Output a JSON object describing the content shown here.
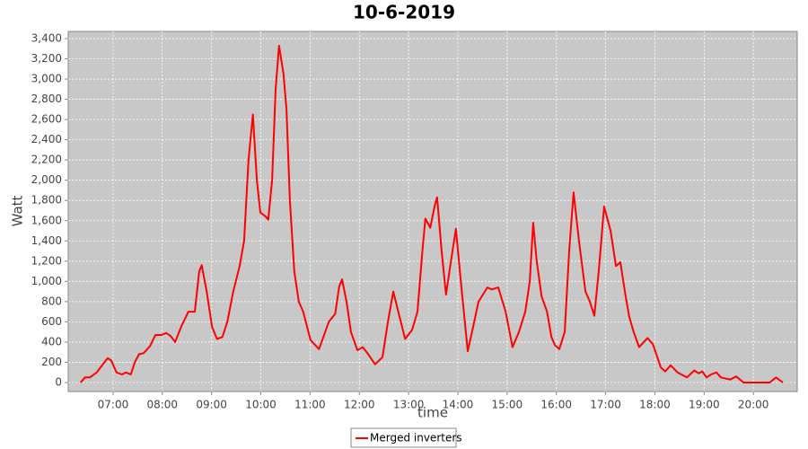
{
  "chart_data": {
    "type": "line",
    "title": "10-6-2019",
    "x_label": "time",
    "y_label": "Watt",
    "x": [
      6.34,
      6.43,
      6.53,
      6.67,
      6.76,
      6.89,
      6.96,
      7.07,
      7.18,
      7.26,
      7.36,
      7.44,
      7.53,
      7.62,
      7.75,
      7.86,
      7.98,
      8.08,
      8.17,
      8.26,
      8.39,
      8.53,
      8.66,
      8.75,
      8.8,
      8.9,
      9.01,
      9.11,
      9.22,
      9.32,
      9.44,
      9.57,
      9.66,
      9.75,
      9.84,
      9.92,
      9.99,
      10.1,
      10.15,
      10.23,
      10.3,
      10.37,
      10.46,
      10.52,
      10.59,
      10.68,
      10.77,
      10.86,
      10.94,
      11.01,
      11.18,
      11.27,
      11.38,
      11.51,
      11.59,
      11.65,
      11.74,
      11.83,
      11.96,
      12.07,
      12.18,
      12.32,
      12.47,
      12.58,
      12.69,
      12.79,
      12.93,
      13.07,
      13.18,
      13.28,
      13.34,
      13.44,
      13.53,
      13.58,
      13.67,
      13.76,
      13.86,
      13.96,
      14.06,
      14.2,
      14.31,
      14.42,
      14.6,
      14.69,
      14.82,
      14.97,
      15.11,
      15.24,
      15.37,
      15.46,
      15.53,
      15.6,
      15.7,
      15.81,
      15.9,
      15.97,
      16.06,
      16.17,
      16.26,
      16.35,
      16.46,
      16.59,
      16.68,
      16.77,
      16.86,
      16.97,
      17.1,
      17.21,
      17.3,
      17.39,
      17.48,
      17.57,
      17.68,
      17.85,
      17.96,
      18.12,
      18.21,
      18.32,
      18.46,
      18.65,
      18.8,
      18.89,
      18.96,
      19.05,
      19.14,
      19.25,
      19.34,
      19.53,
      19.65,
      19.8,
      20.33,
      20.46,
      20.6
    ],
    "series": [
      {
        "name": "Merged inverters",
        "color": "#ff0000",
        "values": [
          0,
          50,
          50,
          100,
          160,
          240,
          220,
          100,
          80,
          100,
          80,
          200,
          280,
          290,
          360,
          470,
          470,
          490,
          460,
          400,
          560,
          700,
          700,
          1100,
          1160,
          900,
          550,
          430,
          450,
          600,
          900,
          1150,
          1400,
          2200,
          2650,
          2000,
          1680,
          1640,
          1610,
          2000,
          2900,
          3330,
          3050,
          2700,
          1800,
          1100,
          800,
          700,
          550,
          420,
          330,
          450,
          600,
          680,
          950,
          1020,
          800,
          500,
          320,
          350,
          280,
          180,
          250,
          600,
          900,
          700,
          430,
          520,
          700,
          1300,
          1620,
          1530,
          1750,
          1830,
          1300,
          870,
          1200,
          1520,
          1000,
          310,
          550,
          800,
          940,
          920,
          940,
          700,
          350,
          500,
          700,
          1000,
          1580,
          1200,
          850,
          700,
          450,
          370,
          330,
          500,
          1300,
          1880,
          1400,
          900,
          800,
          660,
          1100,
          1740,
          1500,
          1150,
          1190,
          900,
          650,
          500,
          350,
          440,
          380,
          150,
          110,
          170,
          100,
          50,
          120,
          90,
          110,
          50,
          80,
          100,
          50,
          30,
          60,
          0,
          0,
          50,
          0
        ]
      }
    ],
    "xlim": [
      6.09,
      20.89
    ],
    "xticks": [
      {
        "value": 7,
        "label": "07:00"
      },
      {
        "value": 8,
        "label": "08:00"
      },
      {
        "value": 9,
        "label": "09:00"
      },
      {
        "value": 10,
        "label": "10:00"
      },
      {
        "value": 11,
        "label": "11:00"
      },
      {
        "value": 12,
        "label": "12:00"
      },
      {
        "value": 13,
        "label": "13:00"
      },
      {
        "value": 14,
        "label": "14:00"
      },
      {
        "value": 15,
        "label": "15:00"
      },
      {
        "value": 16,
        "label": "16:00"
      },
      {
        "value": 17,
        "label": "17:00"
      },
      {
        "value": 18,
        "label": "18:00"
      },
      {
        "value": 19,
        "label": "19:00"
      },
      {
        "value": 20,
        "label": "20:00"
      }
    ],
    "ylim": [
      -89,
      3471
    ],
    "yticks": [
      0,
      200,
      400,
      600,
      800,
      {
        "value": 1000,
        "label": "1,000"
      },
      {
        "value": 1200,
        "label": "1,200"
      },
      {
        "value": 1400,
        "label": "1,400"
      },
      {
        "value": 1600,
        "label": "1,600"
      },
      {
        "value": 1800,
        "label": "1,800"
      },
      {
        "value": 2000,
        "label": "2,000"
      },
      {
        "value": 2200,
        "label": "2,200"
      },
      {
        "value": 2400,
        "label": "2,400"
      },
      {
        "value": 2600,
        "label": "2,600"
      },
      {
        "value": 2800,
        "label": "2,800"
      },
      {
        "value": 3000,
        "label": "3,000"
      },
      {
        "value": 3200,
        "label": "3,200"
      },
      {
        "value": 3400,
        "label": "3,400"
      }
    ],
    "grid": true,
    "legend": "bottom"
  }
}
